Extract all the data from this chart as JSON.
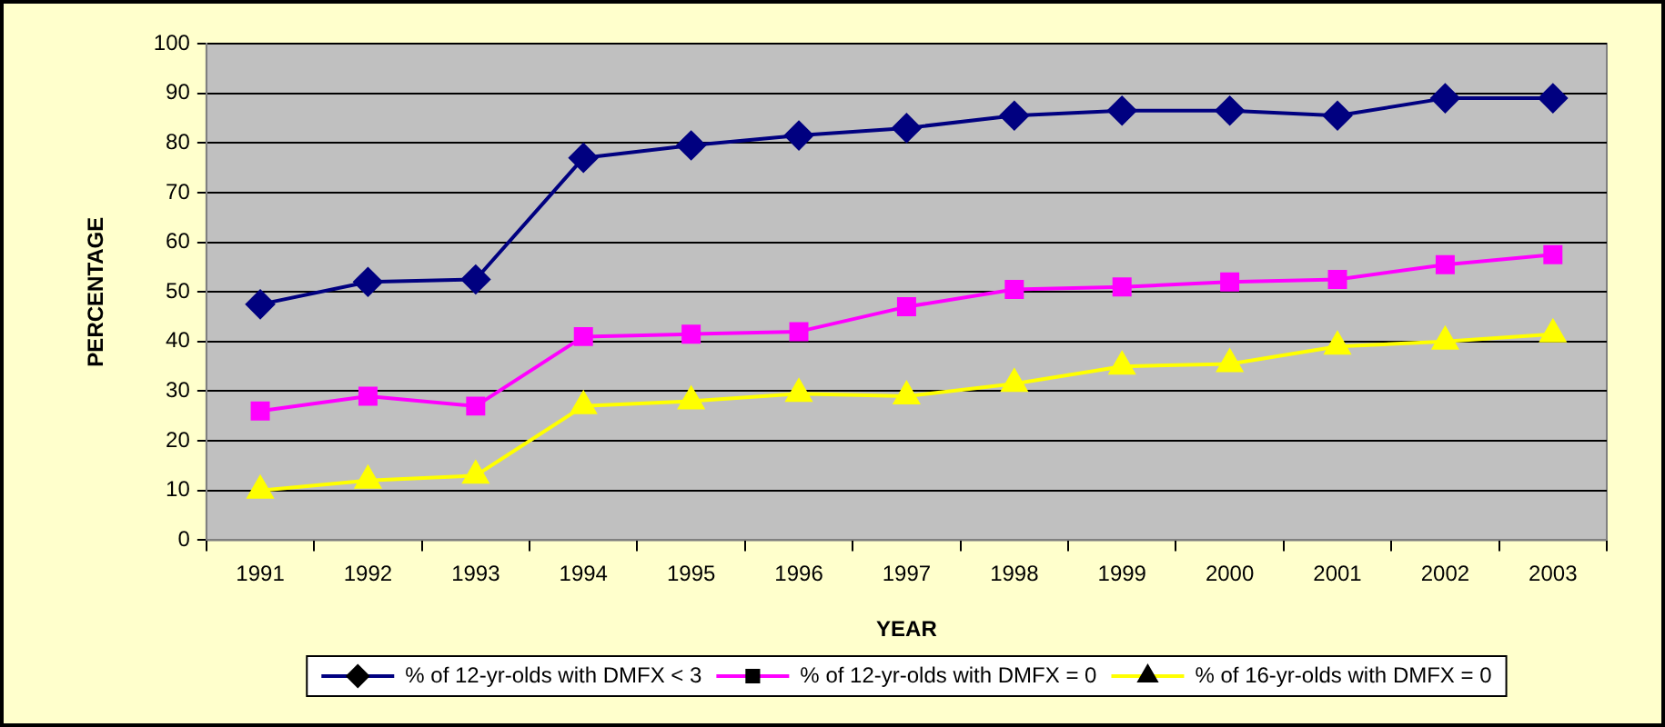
{
  "chart_data": {
    "type": "line",
    "xlabel": "YEAR",
    "ylabel": "PERCENTAGE",
    "categories": [
      "1991",
      "1992",
      "1993",
      "1994",
      "1995",
      "1996",
      "1997",
      "1998",
      "1999",
      "2000",
      "2001",
      "2002",
      "2003"
    ],
    "series": [
      {
        "name": "% of 12-yr-olds with DMFX < 3",
        "color": "#000080",
        "marker": "diamond",
        "values": [
          47.5,
          52,
          52.5,
          77,
          79.5,
          81.5,
          83,
          85.5,
          86.5,
          86.5,
          85.5,
          89,
          89
        ]
      },
      {
        "name": "% of 12-yr-olds with DMFX = 0",
        "color": "#ff00ff",
        "marker": "square",
        "values": [
          26,
          29,
          27,
          41,
          41.5,
          42,
          47,
          50.5,
          51,
          52,
          52.5,
          55.5,
          57.5
        ]
      },
      {
        "name": "% of 16-yr-olds with DMFX = 0",
        "color": "#ffff00",
        "marker": "triangle",
        "values": [
          10,
          12,
          13,
          27,
          28,
          29.5,
          29,
          31.5,
          35,
          35.5,
          39,
          40,
          41.5
        ]
      }
    ],
    "ylim": [
      0,
      100
    ],
    "yticks": [
      0,
      10,
      20,
      30,
      40,
      50,
      60,
      70,
      80,
      90,
      100
    ],
    "grid": "y",
    "legend": "bottom"
  }
}
